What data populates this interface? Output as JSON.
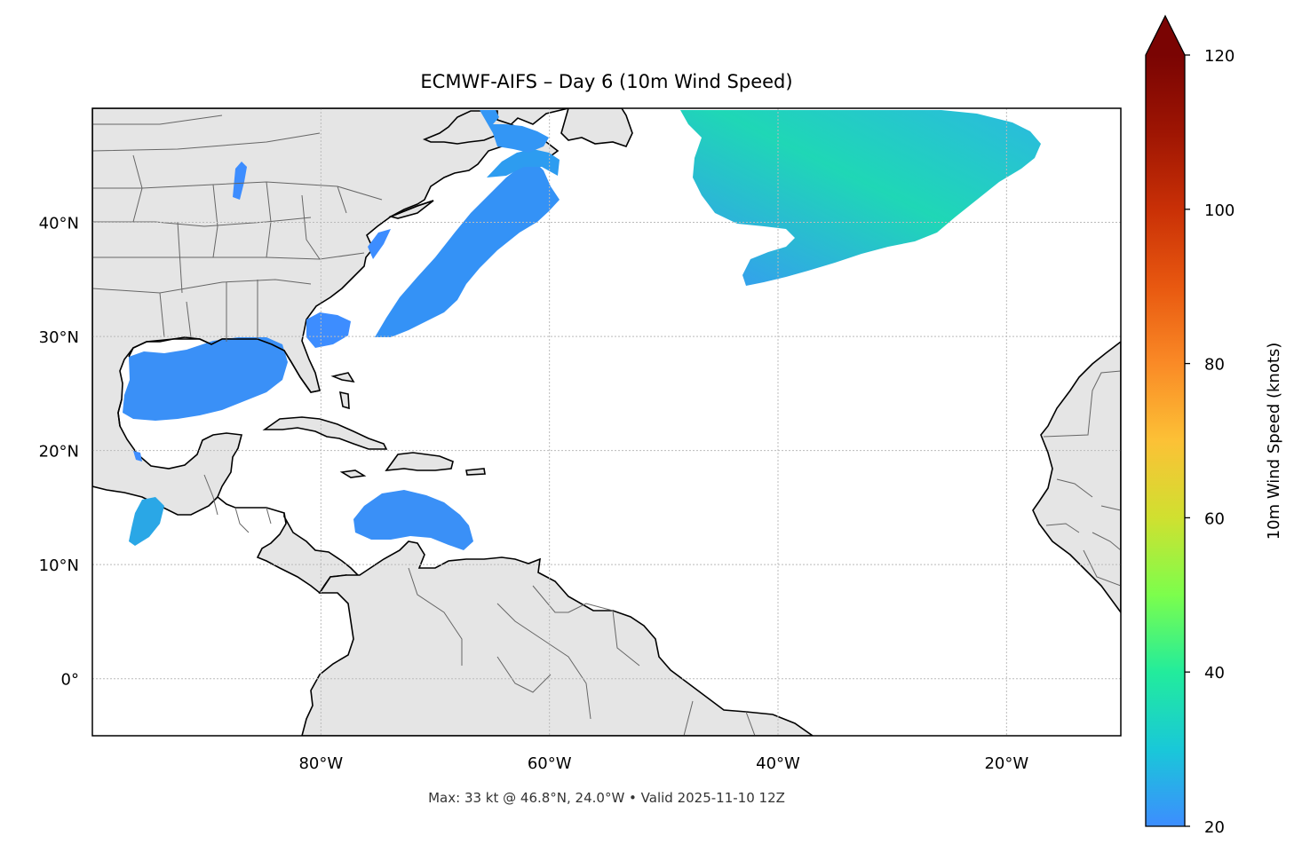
{
  "map": {
    "title": "ECMWF-AIFS – Day 6 (10m Wind Speed)",
    "footer": "Max: 33 kt @ 46.8°N, 24.0°W • Valid 2025-11-10 12Z",
    "extent": {
      "lon": [
        -100,
        -10
      ],
      "lat": [
        -5,
        50
      ]
    },
    "lon_ticks": [
      {
        "value": -80,
        "label": "80°W"
      },
      {
        "value": -60,
        "label": "60°W"
      },
      {
        "value": -40,
        "label": "40°W"
      },
      {
        "value": -20,
        "label": "20°W"
      }
    ],
    "lat_ticks": [
      {
        "value": 40,
        "label": "40°N"
      },
      {
        "value": 30,
        "label": "30°N"
      },
      {
        "value": 20,
        "label": "20°N"
      },
      {
        "value": 10,
        "label": "10°N"
      },
      {
        "value": 0,
        "label": "0°"
      }
    ],
    "gridlines": true,
    "colors": {
      "land": "#e5e5e5",
      "ocean": "#ffffff",
      "coast": "#000000",
      "border": "#666666",
      "grid": "#bbbbbb"
    }
  },
  "colorbar": {
    "label": "10m Wind Speed (knots)",
    "min": 20,
    "max": 120,
    "extend": "max",
    "ticks": [
      20,
      40,
      60,
      80,
      100,
      120
    ],
    "tick_labels": [
      "20",
      "40",
      "60",
      "80",
      "100",
      "120"
    ],
    "stops": [
      {
        "value": 20,
        "color": "#3d8dff"
      },
      {
        "value": 30,
        "color": "#19c8d8"
      },
      {
        "value": 40,
        "color": "#22ec9c"
      },
      {
        "value": 50,
        "color": "#7cfe4c"
      },
      {
        "value": 60,
        "color": "#d0e030"
      },
      {
        "value": 70,
        "color": "#fcc136"
      },
      {
        "value": 80,
        "color": "#fa8a26"
      },
      {
        "value": 90,
        "color": "#e85810"
      },
      {
        "value": 100,
        "color": "#c93006"
      },
      {
        "value": 110,
        "color": "#9e1503"
      },
      {
        "value": 120,
        "color": "#7a0403"
      }
    ]
  },
  "wind_regions": [
    {
      "name": "north-atlantic-low",
      "speed_kt": 30
    },
    {
      "name": "gulf-of-mexico",
      "speed_kt": 23
    },
    {
      "name": "gulf-stream-band",
      "speed_kt": 24
    },
    {
      "name": "nova-scotia",
      "speed_kt": 24
    },
    {
      "name": "gulf-of-st-lawrence",
      "speed_kt": 23
    },
    {
      "name": "caribbean-sea",
      "speed_kt": 23
    },
    {
      "name": "gulf-of-tehuantepec",
      "speed_kt": 26
    },
    {
      "name": "off-carolinas",
      "speed_kt": 22
    },
    {
      "name": "lake-michigan",
      "speed_kt": 22
    },
    {
      "name": "off-north-florida",
      "speed_kt": 22
    }
  ]
}
